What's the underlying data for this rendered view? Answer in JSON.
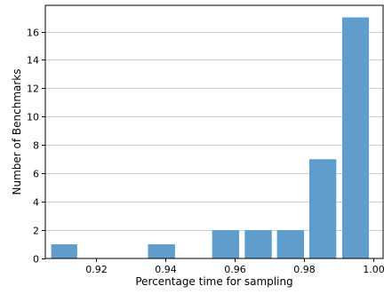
{
  "chart_data": {
    "type": "bar",
    "title": "",
    "xlabel": "Percentage time for sampling",
    "ylabel": "Number of Benchmarks",
    "bars": [
      {
        "x_start": 0.9071,
        "x_end": 0.9146,
        "value": 1
      },
      {
        "x_start": 0.935,
        "x_end": 0.9428,
        "value": 1
      },
      {
        "x_start": 0.9535,
        "x_end": 0.9613,
        "value": 2
      },
      {
        "x_start": 0.9629,
        "x_end": 0.9707,
        "value": 2
      },
      {
        "x_start": 0.9722,
        "x_end": 0.98,
        "value": 2
      },
      {
        "x_start": 0.9815,
        "x_end": 0.9893,
        "value": 7
      },
      {
        "x_start": 0.991,
        "x_end": 0.9987,
        "value": 17
      }
    ],
    "xticks": [
      0.92,
      0.94,
      0.96,
      0.98,
      1.0
    ],
    "xtick_labels": [
      "0.92",
      "0.94",
      "0.96",
      "0.98",
      "1.00"
    ],
    "yticks": [
      0,
      2,
      4,
      6,
      8,
      10,
      12,
      14,
      16
    ],
    "ytick_labels": [
      "0",
      "2",
      "4",
      "6",
      "8",
      "10",
      "12",
      "14",
      "16"
    ],
    "xlim": [
      0.9054,
      1.0028
    ],
    "ylim": [
      0,
      17.85
    ],
    "grid": "horizontal",
    "bar_color": "#5f9ecc"
  }
}
